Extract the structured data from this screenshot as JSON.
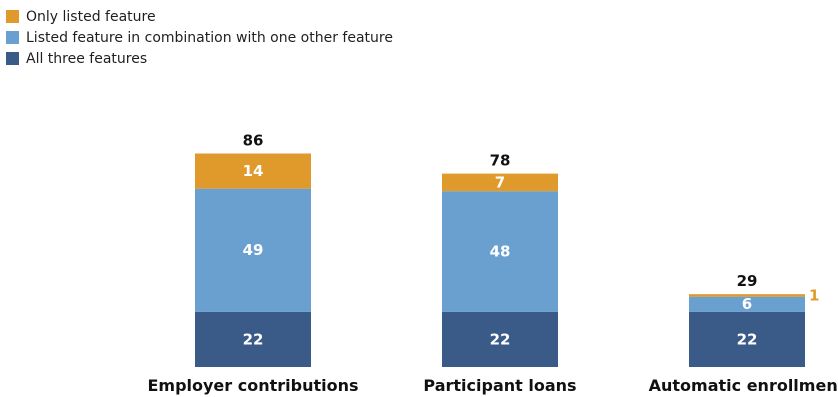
{
  "chart_data": {
    "type": "bar",
    "stacked": true,
    "categories": [
      "Employer contributions",
      "Participant loans",
      "Automatic enrollment"
    ],
    "series": [
      {
        "name": "All three features",
        "values": [
          22,
          22,
          22
        ],
        "color": "#3a5a87"
      },
      {
        "name": "Listed feature in combination with one other feature",
        "values": [
          49,
          48,
          6
        ],
        "color": "#6aa0d0"
      },
      {
        "name": "Only listed feature",
        "values": [
          14,
          7,
          1
        ],
        "color": "#e09a2c"
      }
    ],
    "totals": [
      86,
      78,
      29
    ],
    "legend": {
      "placement": "top-left",
      "order": [
        "Only listed feature",
        "Listed feature in combination with one other feature",
        "All three features"
      ]
    },
    "ylim": [
      0,
      86
    ],
    "grid": false
  }
}
